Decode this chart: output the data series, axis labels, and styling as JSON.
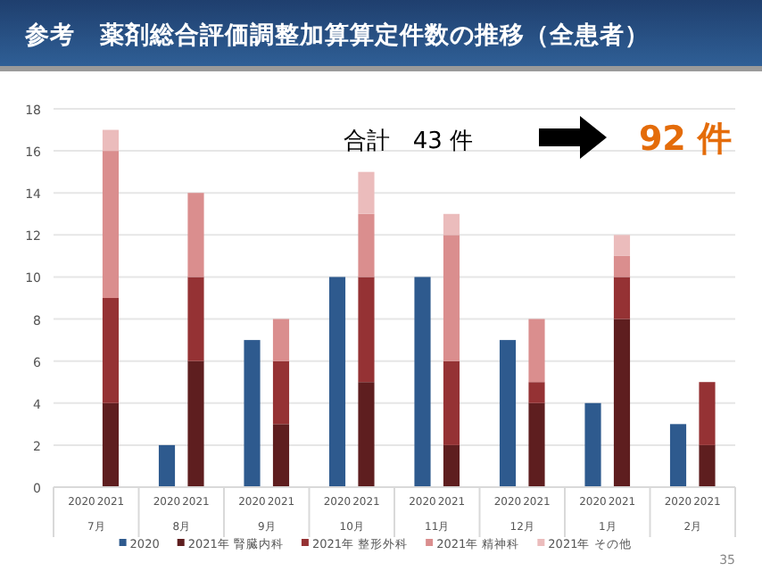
{
  "chart_data": {
    "type": "bar",
    "title": "参考　薬剤総合評価調整加算算定件数の推移（全患者）",
    "categories": [
      "2020",
      "2021",
      "2020",
      "2021",
      "2020",
      "2021",
      "2020",
      "2021",
      "2020",
      "2021",
      "2020",
      "2021",
      "2020",
      "2021",
      "2020",
      "2021"
    ],
    "annotations": [
      "7月",
      "8月",
      "9月",
      "10月",
      "11月",
      "12月",
      "1月",
      "2月",
      "合計　43 件",
      "92 件",
      "35"
    ],
    "stacked": true,
    "series": [
      {
        "name": "2020",
        "color": "#2e5a8e",
        "values": [
          0,
          null,
          2,
          null,
          7,
          null,
          10,
          null,
          10,
          null,
          7,
          null,
          4,
          null,
          3,
          null
        ]
      },
      {
        "name": "2021年 腎臓内科",
        "color": "#5e1e1f",
        "values": [
          null,
          4,
          null,
          6,
          null,
          3,
          null,
          5,
          null,
          2,
          null,
          4,
          null,
          8,
          null,
          2
        ]
      },
      {
        "name": "2021年 整形外科",
        "color": "#953234",
        "values": [
          null,
          5,
          null,
          4,
          null,
          3,
          null,
          5,
          null,
          4,
          null,
          1,
          null,
          2,
          null,
          3
        ]
      },
      {
        "name": "2021年 精神科",
        "color": "#da8e8e",
        "values": [
          null,
          7,
          null,
          4,
          null,
          2,
          null,
          3,
          null,
          6,
          null,
          3,
          null,
          1,
          null,
          0
        ]
      },
      {
        "name": "2021年 その他",
        "color": "#ebbcbc",
        "values": [
          null,
          1,
          null,
          0,
          null,
          0,
          null,
          2,
          null,
          1,
          null,
          0,
          null,
          1,
          null,
          0
        ]
      }
    ],
    "ylim": [
      0,
      18
    ],
    "yticks": [
      0,
      2,
      4,
      6,
      8,
      10,
      12,
      14,
      16,
      18
    ],
    "grid": "y",
    "legend": "bottom"
  }
}
